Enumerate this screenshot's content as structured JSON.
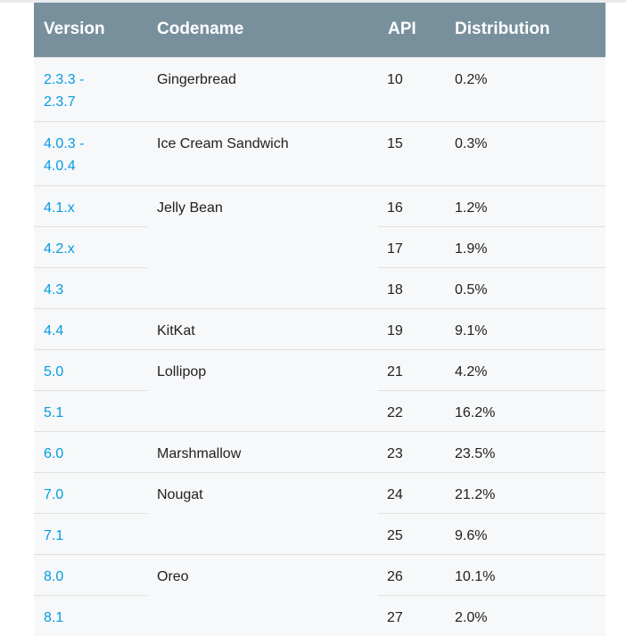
{
  "columns": [
    "Version",
    "Codename",
    "API",
    "Distribution"
  ],
  "rows": [
    {
      "version": "2.3.3 -\n2.3.7",
      "codename": "Gingerbread",
      "api": "10",
      "distribution": "0.2%"
    },
    {
      "version": "4.0.3 -\n4.0.4",
      "codename": "Ice Cream Sandwich",
      "api": "15",
      "distribution": "0.3%"
    },
    {
      "version": "4.1.x",
      "codename": "Jelly Bean",
      "api": "16",
      "distribution": "1.2%"
    },
    {
      "version": "4.2.x",
      "codename": "",
      "api": "17",
      "distribution": "1.9%"
    },
    {
      "version": "4.3",
      "codename": "",
      "api": "18",
      "distribution": "0.5%"
    },
    {
      "version": "4.4",
      "codename": "KitKat",
      "api": "19",
      "distribution": "9.1%"
    },
    {
      "version": "5.0",
      "codename": "Lollipop",
      "api": "21",
      "distribution": "4.2%"
    },
    {
      "version": "5.1",
      "codename": "",
      "api": "22",
      "distribution": "16.2%"
    },
    {
      "version": "6.0",
      "codename": "Marshmallow",
      "api": "23",
      "distribution": "23.5%"
    },
    {
      "version": "7.0",
      "codename": "Nougat",
      "api": "24",
      "distribution": "21.2%"
    },
    {
      "version": "7.1",
      "codename": "",
      "api": "25",
      "distribution": "9.6%"
    },
    {
      "version": "8.0",
      "codename": "Oreo",
      "api": "26",
      "distribution": "10.1%"
    },
    {
      "version": "8.1",
      "codename": "",
      "api": "27",
      "distribution": "2.0%"
    }
  ],
  "colors": {
    "header_bg": "#78909c",
    "link": "#039be5",
    "row_bg": "#f7f8f9"
  }
}
